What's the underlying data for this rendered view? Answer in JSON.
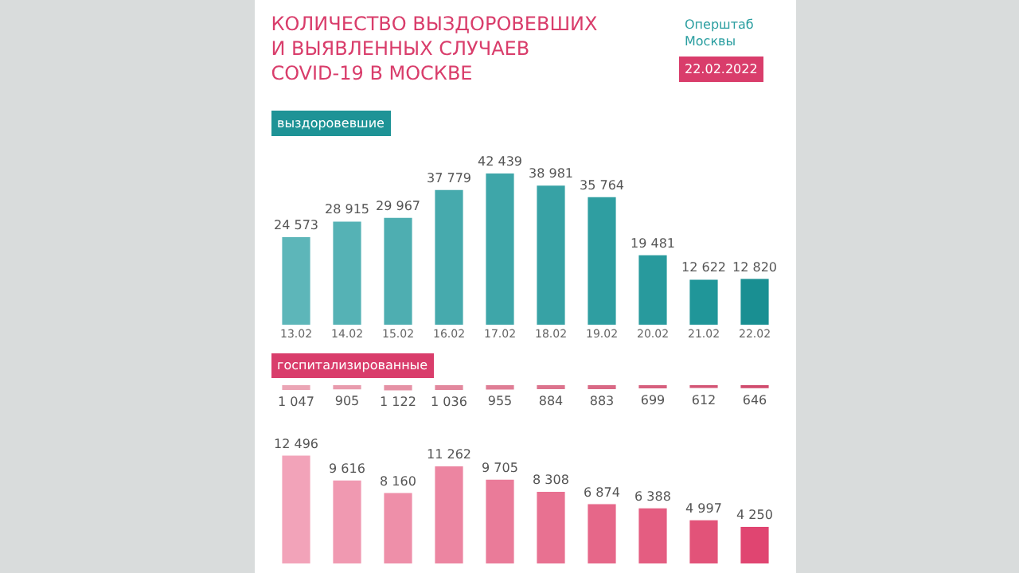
{
  "chart_data": [
    {
      "type": "bar",
      "title": "КОЛИЧЕСТВО ВЫЗДОРОВЕВШИХ\nИ ВЫЯВЛЕННЫХ СЛУЧАЕВ\nCOVID-19 В МОСКВЕ",
      "categories": [
        "13.02",
        "14.02",
        "15.02",
        "16.02",
        "17.02",
        "18.02",
        "19.02",
        "20.02",
        "21.02",
        "22.02"
      ],
      "values": [
        24573,
        28915,
        29967,
        37779,
        42439,
        38981,
        35764,
        19481,
        12622,
        12820
      ],
      "value_labels": [
        "24 573",
        "28 915",
        "29 967",
        "37 779",
        "42 439",
        "38 981",
        "35 764",
        "19 481",
        "12 622",
        "12 820"
      ],
      "colors": [
        "#5db6b9",
        "#55b2b5",
        "#4eaeb1",
        "#46aaad",
        "#3ea6a9",
        "#37a2a5",
        "#2f9ea1",
        "#289a9d",
        "#209699",
        "#198f92"
      ],
      "tick_labels": "x",
      "annotations": [
        "Оперштаб\nМосквы",
        "22.02.2022",
        "выздоровевшие"
      ]
    },
    {
      "type": "bar",
      "categories": [
        "13.02",
        "14.02",
        "15.02",
        "16.02",
        "17.02",
        "18.02",
        "19.02",
        "20.02",
        "21.02",
        "22.02"
      ],
      "values": [
        1047,
        905,
        1122,
        1036,
        955,
        884,
        883,
        699,
        612,
        646
      ],
      "value_labels": [
        "1 047",
        "905",
        "1 122",
        "1 036",
        "955",
        "884",
        "883",
        "699",
        "612",
        "646"
      ],
      "colors": [
        "#eba5b5",
        "#e89bad",
        "#e591a5",
        "#e2879d",
        "#df7d95",
        "#dc738d",
        "#d96985",
        "#d65f7d",
        "#d35575",
        "#d04b6d"
      ],
      "tick_labels": false,
      "annotations": [
        "госпитализированные"
      ]
    },
    {
      "type": "bar",
      "categories": [
        "13.02",
        "14.02",
        "15.02",
        "16.02",
        "17.02",
        "18.02",
        "19.02",
        "20.02",
        "21.02",
        "22.02"
      ],
      "values": [
        12496,
        9616,
        8160,
        11262,
        9705,
        8308,
        6874,
        6388,
        4997,
        4250
      ],
      "value_labels": [
        "12 496",
        "9 616",
        "8 160",
        "11 262",
        "9 705",
        "8 308",
        "6 874",
        "6 388",
        "4 997",
        "4 250"
      ],
      "colors": [
        "#f2a3b9",
        "#f099b1",
        "#ee8fa9",
        "#ec85a1",
        "#ea7b99",
        "#e87191",
        "#e66789",
        "#e45d81",
        "#e25379",
        "#e04571"
      ],
      "tick_labels": false
    }
  ]
}
